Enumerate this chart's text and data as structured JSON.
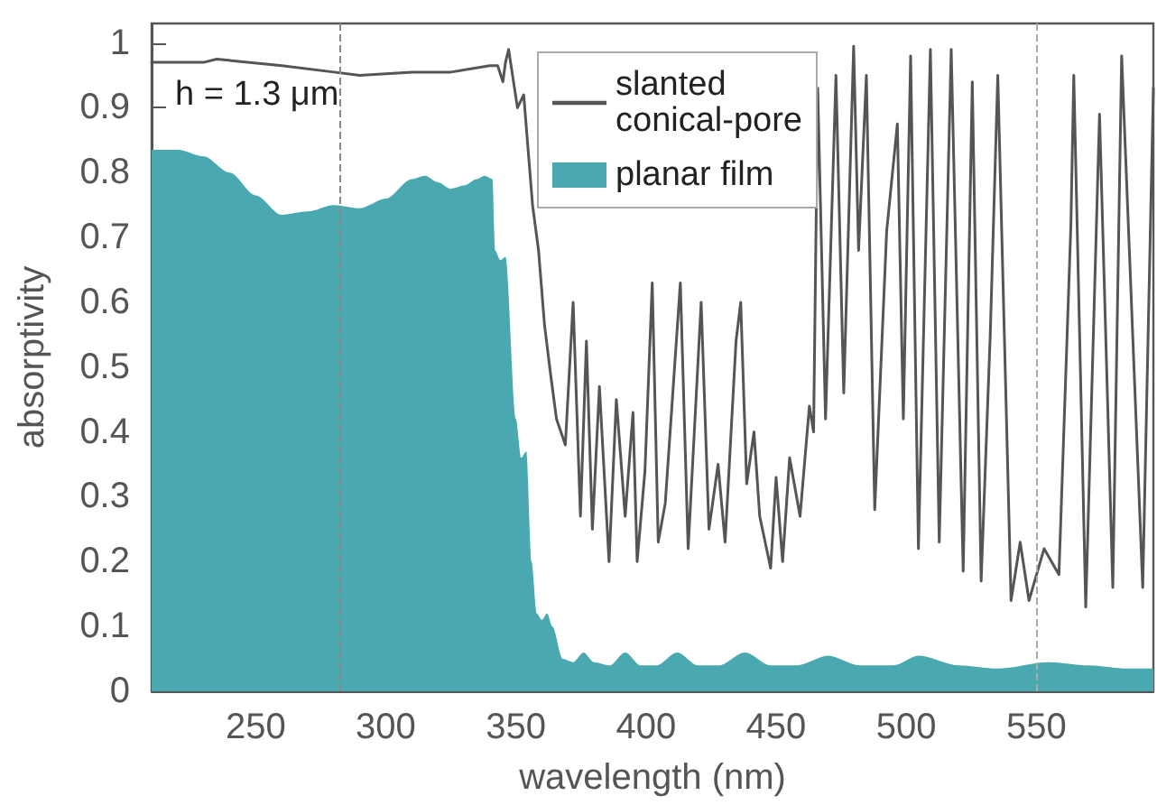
{
  "chart_data": {
    "type": "line",
    "xlabel": "wavelength (nm)",
    "ylabel": "absorptivity",
    "annotations": [
      "h = 1.3 μm"
    ],
    "xlim": [
      210,
      595
    ],
    "xticks": [
      250,
      300,
      350,
      400,
      450,
      500,
      550
    ],
    "ylim": [
      0,
      1.03
    ],
    "yticks": [
      0,
      0.1,
      0.2,
      0.3,
      0.4,
      0.5,
      0.6,
      0.7,
      0.8,
      0.9,
      1
    ],
    "grid": false,
    "legend": "top",
    "marker": "none",
    "ref_lines": [
      {
        "axis": "x",
        "value": 282,
        "color": "#888888",
        "line_style": "dashed"
      },
      {
        "axis": "x",
        "value": 550,
        "color": "#aaaaaa",
        "line_style": "dashed"
      }
    ],
    "series": [
      {
        "name": "slanted\nconical-pore",
        "color": "#555555",
        "line_style": "solid",
        "x": [
          210,
          230,
          235,
          260,
          280,
          290,
          310,
          325,
          340,
          343,
          345,
          346,
          347.2,
          350.6,
          353,
          356.4,
          358.7,
          361,
          363.3,
          365.6,
          369,
          372,
          374.8,
          377.1,
          379.4,
          382.1,
          385.8,
          388.6,
          392,
          395,
          396.6,
          399.6,
          402.4,
          404.7,
          407.4,
          413.2,
          416.2,
          421.2,
          424.2,
          427.7,
          430.4,
          434.6,
          436.4,
          438.7,
          441.5,
          443.7,
          447.9,
          450,
          452.5,
          455.2,
          459.2,
          462.8,
          464.4,
          466,
          469,
          473,
          476,
          479.8,
          481.7,
          484.7,
          487.9,
          492.5,
          496.6,
          498.9,
          501.7,
          504.7,
          509.3,
          512.7,
          517.3,
          521.9,
          525.4,
          528.8,
          532.3,
          535.2,
          540.3,
          543.8,
          547.2,
          553,
          558.7,
          563.3,
          564.4,
          569,
          574.3,
          579.4,
          582.8,
          590.9,
          595
        ],
        "values": [
          0.97,
          0.97,
          0.975,
          0.965,
          0.955,
          0.95,
          0.955,
          0.955,
          0.965,
          0.965,
          0.94,
          0.97,
          0.99,
          0.9,
          0.92,
          0.75,
          0.68,
          0.565,
          0.49,
          0.42,
          0.38,
          0.6,
          0.27,
          0.54,
          0.25,
          0.47,
          0.2,
          0.45,
          0.27,
          0.43,
          0.2,
          0.34,
          0.63,
          0.23,
          0.29,
          0.63,
          0.22,
          0.6,
          0.25,
          0.35,
          0.23,
          0.54,
          0.6,
          0.32,
          0.4,
          0.27,
          0.19,
          0.33,
          0.2,
          0.36,
          0.27,
          0.44,
          0.4,
          0.93,
          0.42,
          0.95,
          0.46,
          0.995,
          0.68,
          0.95,
          0.28,
          0.71,
          0.875,
          0.42,
          0.98,
          0.22,
          0.99,
          0.23,
          0.99,
          0.185,
          0.94,
          0.17,
          0.55,
          0.95,
          0.14,
          0.23,
          0.14,
          0.22,
          0.18,
          0.72,
          0.95,
          0.13,
          0.89,
          0.16,
          0.98,
          0.16,
          0.93
        ]
      },
      {
        "name": "planar film",
        "type": "area",
        "color": "#4aa8b0",
        "x": [
          210,
          220,
          230,
          240,
          250,
          260,
          270,
          280,
          290,
          300,
          310,
          315,
          320,
          325,
          330,
          335,
          338,
          341,
          342,
          344,
          346,
          350,
          352,
          354,
          356,
          358,
          360,
          362,
          364,
          368,
          372,
          376,
          380,
          386,
          392,
          398,
          404,
          412,
          420,
          428,
          438,
          448,
          458,
          470,
          482,
          495,
          505,
          520,
          535,
          555,
          570,
          585,
          595
        ],
        "values": [
          0.835,
          0.835,
          0.825,
          0.8,
          0.765,
          0.735,
          0.74,
          0.75,
          0.745,
          0.76,
          0.79,
          0.795,
          0.785,
          0.775,
          0.78,
          0.79,
          0.795,
          0.79,
          0.68,
          0.665,
          0.67,
          0.42,
          0.36,
          0.37,
          0.2,
          0.12,
          0.11,
          0.12,
          0.1,
          0.05,
          0.045,
          0.06,
          0.045,
          0.04,
          0.06,
          0.04,
          0.04,
          0.06,
          0.04,
          0.04,
          0.06,
          0.04,
          0.04,
          0.055,
          0.04,
          0.04,
          0.055,
          0.04,
          0.035,
          0.045,
          0.04,
          0.035,
          0.035
        ]
      }
    ]
  }
}
